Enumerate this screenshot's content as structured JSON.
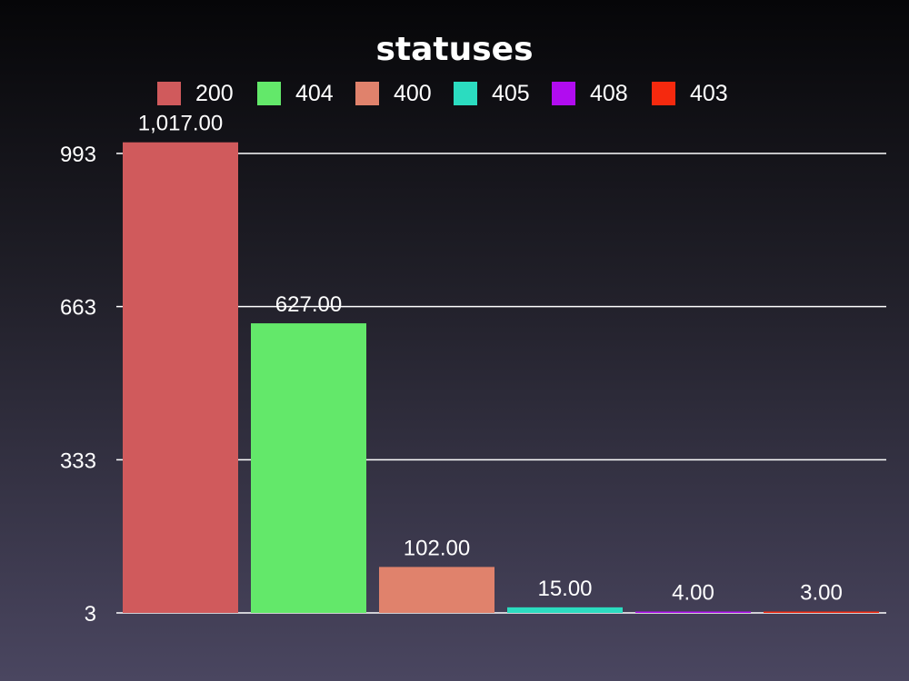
{
  "chart_data": {
    "type": "bar",
    "title": "statuses",
    "categories": [
      "200",
      "404",
      "400",
      "405",
      "408",
      "403"
    ],
    "values": [
      1017,
      627,
      102,
      15,
      4,
      3
    ],
    "value_labels": [
      "1,017.00",
      "627.00",
      "102.00",
      "15.00",
      "4.00",
      "3.00"
    ],
    "colors": [
      "#d05a5c",
      "#63e86a",
      "#e0826c",
      "#2bdcc0",
      "#b10cf0",
      "#f5290e"
    ],
    "xlabel": "",
    "ylabel": "",
    "ylim": [
      3,
      1017
    ],
    "yticks": [
      3,
      333,
      663,
      993
    ],
    "ytick_labels": [
      "3",
      "333",
      "663",
      "993"
    ],
    "grid": true,
    "legend_position": "top-center",
    "legend": [
      "200",
      "404",
      "400",
      "405",
      "408",
      "403"
    ]
  }
}
